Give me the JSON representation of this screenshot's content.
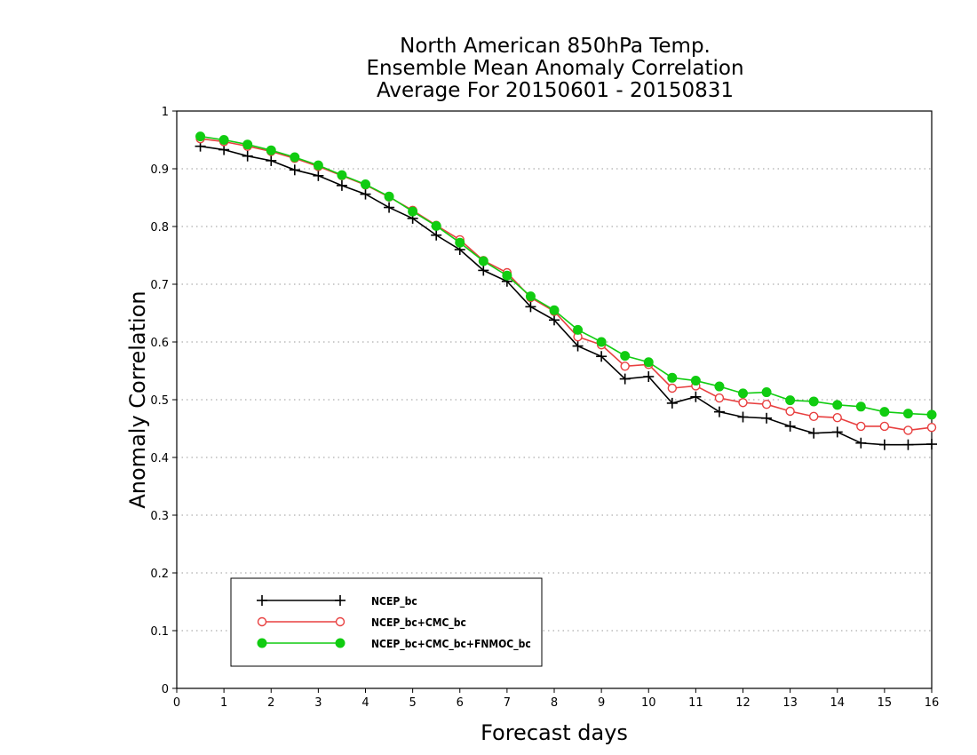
{
  "chart_data": {
    "type": "line",
    "title": [
      "North American 850hPa Temp.",
      "Ensemble Mean Anomaly Correlation",
      "Average For 20150601 - 20150831"
    ],
    "xlabel": "Forecast days",
    "ylabel": "Anomaly Correlation",
    "xlim": [
      0,
      16
    ],
    "ylim": [
      0,
      1
    ],
    "x_ticks": [
      "0",
      "1",
      "2",
      "3",
      "4",
      "5",
      "6",
      "7",
      "8",
      "9",
      "10",
      "11",
      "12",
      "13",
      "14",
      "15",
      "16"
    ],
    "y_ticks": [
      "0",
      "0.1",
      "0.2",
      "0.3",
      "0.4",
      "0.5",
      "0.6",
      "0.7",
      "0.8",
      "0.9",
      "1"
    ],
    "grid": "dotted horizontal",
    "legend_position": "bottom-left",
    "x": [
      0.5,
      1,
      1.5,
      2,
      2.5,
      3,
      3.5,
      4,
      4.5,
      5,
      5.5,
      6,
      6.5,
      7,
      7.5,
      8,
      8.5,
      9,
      9.5,
      10,
      10.5,
      11,
      11.5,
      12,
      12.5,
      13,
      13.5,
      14,
      14.5,
      15,
      15.5,
      16
    ],
    "series": [
      {
        "name": "NCEP_bc",
        "color": "#000000",
        "marker": "plus",
        "values": [
          0.939,
          0.933,
          0.922,
          0.914,
          0.898,
          0.888,
          0.871,
          0.856,
          0.833,
          0.814,
          0.785,
          0.76,
          0.724,
          0.705,
          0.661,
          0.638,
          0.593,
          0.575,
          0.536,
          0.54,
          0.494,
          0.505,
          0.479,
          0.47,
          0.468,
          0.454,
          0.442,
          0.444,
          0.425,
          0.422,
          0.422,
          0.423
        ]
      },
      {
        "name": "NCEP_bc+CMC_bc",
        "color": "#e84040",
        "marker": "open-circle",
        "values": [
          0.952,
          0.947,
          0.939,
          0.93,
          0.918,
          0.904,
          0.888,
          0.872,
          0.851,
          0.828,
          0.802,
          0.777,
          0.741,
          0.72,
          0.677,
          0.653,
          0.609,
          0.595,
          0.558,
          0.561,
          0.52,
          0.524,
          0.503,
          0.495,
          0.492,
          0.48,
          0.471,
          0.469,
          0.454,
          0.454,
          0.447,
          0.452
        ]
      },
      {
        "name": "NCEP_bc+CMC_bc+FNMOC_bc",
        "color": "#11cc11",
        "marker": "filled-circle",
        "values": [
          0.956,
          0.95,
          0.942,
          0.932,
          0.92,
          0.906,
          0.889,
          0.873,
          0.852,
          0.826,
          0.801,
          0.772,
          0.74,
          0.715,
          0.679,
          0.655,
          0.621,
          0.6,
          0.576,
          0.565,
          0.538,
          0.533,
          0.523,
          0.511,
          0.513,
          0.499,
          0.497,
          0.491,
          0.488,
          0.479,
          0.476,
          0.474
        ]
      }
    ]
  }
}
